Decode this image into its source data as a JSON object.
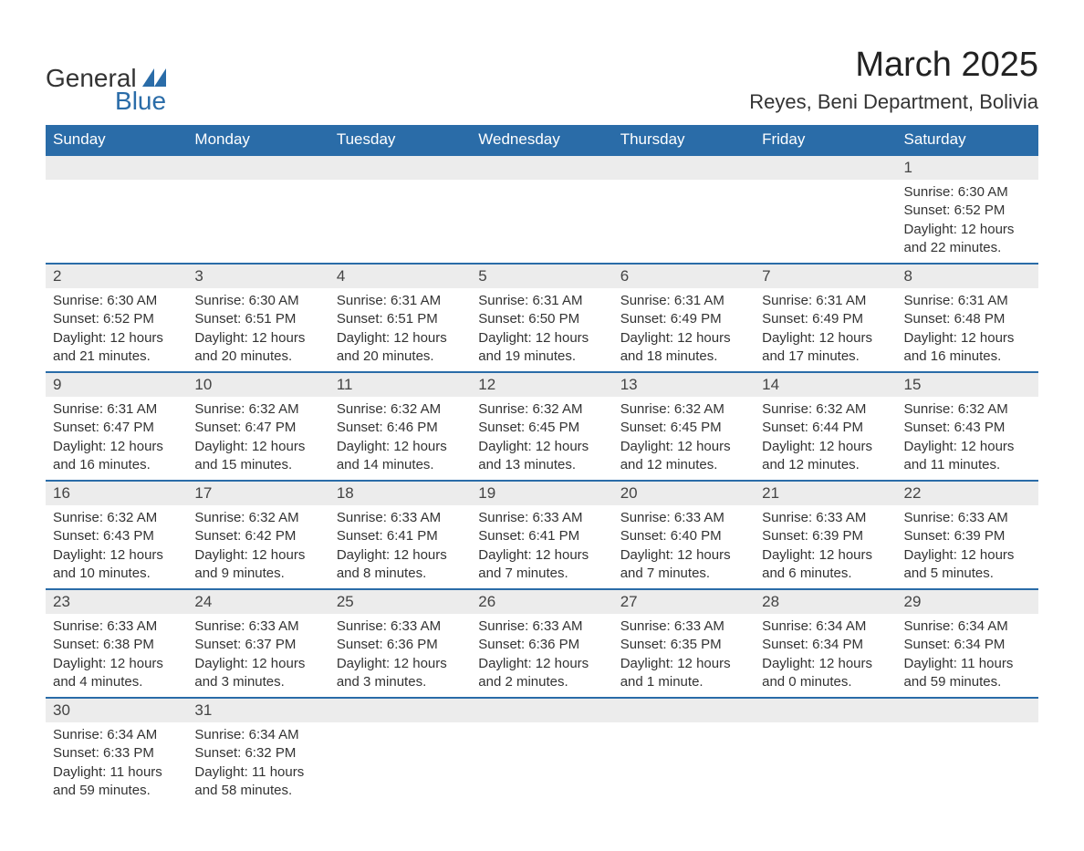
{
  "logo": {
    "general": "General",
    "blue": "Blue",
    "shape_color": "#2a6ca8"
  },
  "title": "March 2025",
  "location": "Reyes, Beni Department, Bolivia",
  "colors": {
    "header_bg": "#2a6ca8",
    "header_text": "#ffffff",
    "daynum_bg": "#ececec",
    "border": "#2a6ca8",
    "body_text": "#333333"
  },
  "weekdays": [
    "Sunday",
    "Monday",
    "Tuesday",
    "Wednesday",
    "Thursday",
    "Friday",
    "Saturday"
  ],
  "weeks": [
    [
      null,
      null,
      null,
      null,
      null,
      null,
      {
        "d": "1",
        "sr": "6:30 AM",
        "ss": "6:52 PM",
        "dl": "12 hours and 22 minutes."
      }
    ],
    [
      {
        "d": "2",
        "sr": "6:30 AM",
        "ss": "6:52 PM",
        "dl": "12 hours and 21 minutes."
      },
      {
        "d": "3",
        "sr": "6:30 AM",
        "ss": "6:51 PM",
        "dl": "12 hours and 20 minutes."
      },
      {
        "d": "4",
        "sr": "6:31 AM",
        "ss": "6:51 PM",
        "dl": "12 hours and 20 minutes."
      },
      {
        "d": "5",
        "sr": "6:31 AM",
        "ss": "6:50 PM",
        "dl": "12 hours and 19 minutes."
      },
      {
        "d": "6",
        "sr": "6:31 AM",
        "ss": "6:49 PM",
        "dl": "12 hours and 18 minutes."
      },
      {
        "d": "7",
        "sr": "6:31 AM",
        "ss": "6:49 PM",
        "dl": "12 hours and 17 minutes."
      },
      {
        "d": "8",
        "sr": "6:31 AM",
        "ss": "6:48 PM",
        "dl": "12 hours and 16 minutes."
      }
    ],
    [
      {
        "d": "9",
        "sr": "6:31 AM",
        "ss": "6:47 PM",
        "dl": "12 hours and 16 minutes."
      },
      {
        "d": "10",
        "sr": "6:32 AM",
        "ss": "6:47 PM",
        "dl": "12 hours and 15 minutes."
      },
      {
        "d": "11",
        "sr": "6:32 AM",
        "ss": "6:46 PM",
        "dl": "12 hours and 14 minutes."
      },
      {
        "d": "12",
        "sr": "6:32 AM",
        "ss": "6:45 PM",
        "dl": "12 hours and 13 minutes."
      },
      {
        "d": "13",
        "sr": "6:32 AM",
        "ss": "6:45 PM",
        "dl": "12 hours and 12 minutes."
      },
      {
        "d": "14",
        "sr": "6:32 AM",
        "ss": "6:44 PM",
        "dl": "12 hours and 12 minutes."
      },
      {
        "d": "15",
        "sr": "6:32 AM",
        "ss": "6:43 PM",
        "dl": "12 hours and 11 minutes."
      }
    ],
    [
      {
        "d": "16",
        "sr": "6:32 AM",
        "ss": "6:43 PM",
        "dl": "12 hours and 10 minutes."
      },
      {
        "d": "17",
        "sr": "6:32 AM",
        "ss": "6:42 PM",
        "dl": "12 hours and 9 minutes."
      },
      {
        "d": "18",
        "sr": "6:33 AM",
        "ss": "6:41 PM",
        "dl": "12 hours and 8 minutes."
      },
      {
        "d": "19",
        "sr": "6:33 AM",
        "ss": "6:41 PM",
        "dl": "12 hours and 7 minutes."
      },
      {
        "d": "20",
        "sr": "6:33 AM",
        "ss": "6:40 PM",
        "dl": "12 hours and 7 minutes."
      },
      {
        "d": "21",
        "sr": "6:33 AM",
        "ss": "6:39 PM",
        "dl": "12 hours and 6 minutes."
      },
      {
        "d": "22",
        "sr": "6:33 AM",
        "ss": "6:39 PM",
        "dl": "12 hours and 5 minutes."
      }
    ],
    [
      {
        "d": "23",
        "sr": "6:33 AM",
        "ss": "6:38 PM",
        "dl": "12 hours and 4 minutes."
      },
      {
        "d": "24",
        "sr": "6:33 AM",
        "ss": "6:37 PM",
        "dl": "12 hours and 3 minutes."
      },
      {
        "d": "25",
        "sr": "6:33 AM",
        "ss": "6:36 PM",
        "dl": "12 hours and 3 minutes."
      },
      {
        "d": "26",
        "sr": "6:33 AM",
        "ss": "6:36 PM",
        "dl": "12 hours and 2 minutes."
      },
      {
        "d": "27",
        "sr": "6:33 AM",
        "ss": "6:35 PM",
        "dl": "12 hours and 1 minute."
      },
      {
        "d": "28",
        "sr": "6:34 AM",
        "ss": "6:34 PM",
        "dl": "12 hours and 0 minutes."
      },
      {
        "d": "29",
        "sr": "6:34 AM",
        "ss": "6:34 PM",
        "dl": "11 hours and 59 minutes."
      }
    ],
    [
      {
        "d": "30",
        "sr": "6:34 AM",
        "ss": "6:33 PM",
        "dl": "11 hours and 59 minutes."
      },
      {
        "d": "31",
        "sr": "6:34 AM",
        "ss": "6:32 PM",
        "dl": "11 hours and 58 minutes."
      },
      null,
      null,
      null,
      null,
      null
    ]
  ],
  "labels": {
    "sunrise": "Sunrise: ",
    "sunset": "Sunset: ",
    "daylight": "Daylight: "
  }
}
